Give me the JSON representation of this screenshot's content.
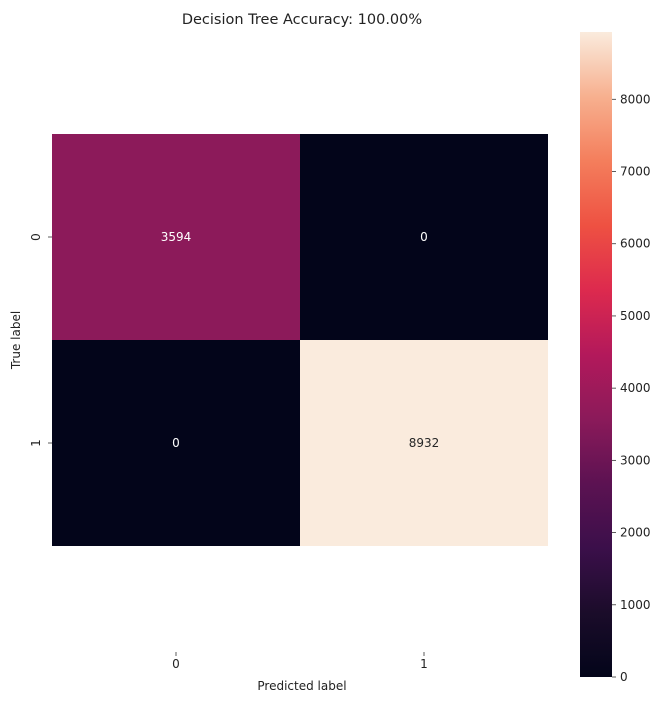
{
  "chart_data": {
    "type": "heatmap",
    "title": "Decision Tree Accuracy: 100.00%",
    "xlabel": "Predicted label",
    "ylabel": "True label",
    "x_categories": [
      "0",
      "1"
    ],
    "y_categories": [
      "0",
      "1"
    ],
    "values": [
      [
        3594,
        0
      ],
      [
        0,
        8932
      ]
    ],
    "annotations": [
      [
        "3594",
        "0"
      ],
      [
        "0",
        "8932"
      ]
    ],
    "colormap": "rocket",
    "colorbar": {
      "range": [
        0,
        8932
      ],
      "ticks": [
        0,
        1000,
        2000,
        3000,
        4000,
        5000,
        6000,
        7000,
        8000
      ],
      "tick_labels": [
        "0",
        "1000",
        "2000",
        "3000",
        "4000",
        "5000",
        "6000",
        "7000",
        "8000"
      ]
    }
  }
}
